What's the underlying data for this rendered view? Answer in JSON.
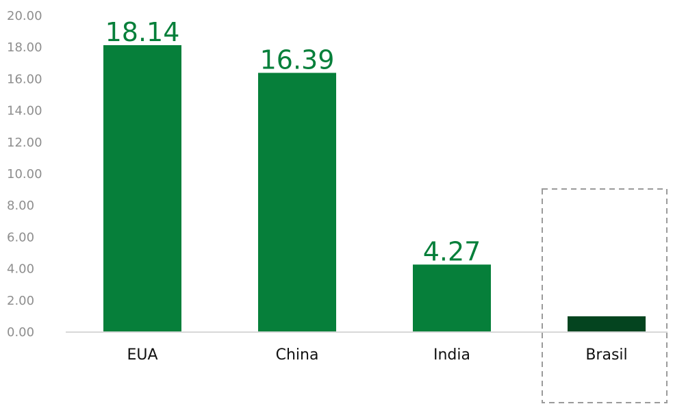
{
  "chart_data": {
    "type": "bar",
    "categories": [
      "EUA",
      "China",
      "India",
      "Brasil"
    ],
    "values": [
      18.14,
      16.39,
      4.27,
      1.0
    ],
    "data_labels": [
      "18.14",
      "16.39",
      "4.27",
      ""
    ],
    "title": "",
    "xlabel": "",
    "ylabel": "",
    "ylim": [
      0,
      20
    ],
    "yticks": [
      "0.00",
      "2.00",
      "4.00",
      "6.00",
      "8.00",
      "10.00",
      "12.00",
      "14.00",
      "16.00",
      "18.00",
      "20.00"
    ],
    "grid": false,
    "highlighted_category": "Brasil",
    "colors": {
      "bar": "#067f3a",
      "highlight_bar": "#04441f",
      "label": "#067f3a",
      "axis": "#d8d8d8",
      "highlight_box": "#9a9a9a"
    }
  }
}
